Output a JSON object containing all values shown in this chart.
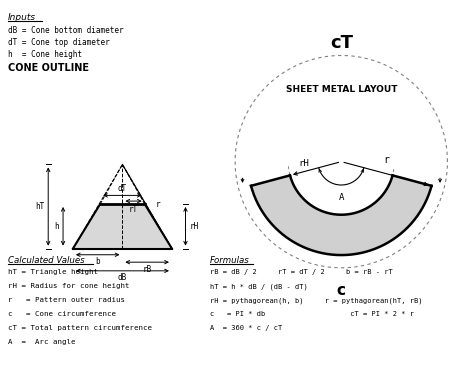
{
  "bg_color": "#ffffff",
  "title": "cT",
  "subtitle": "SHEET METAL LAYOUT",
  "inputs_title": "Inputs",
  "inputs": [
    "dB = Cone bottom diameter",
    "dT = Cone top diameter",
    "h  = Cone height"
  ],
  "cone_outline_title": "CONE OUTLINE",
  "calc_title": "Calculated Values",
  "calc_items": [
    "hT = Triangle height",
    "rH = Radius for cone height",
    "r   = Pattern outer radius",
    "c   = Cone circumference",
    "cT = Total pattern circumference",
    "A  =  Arc angle"
  ],
  "formulas_title": "Formulas",
  "formulas": [
    "rB = dB / 2     rT = dT / 2     b = rB - rT",
    "hT = h * dB / (dB - dT)",
    "rH = pythagorean(h, b)     r = pythagorean(hT, rB)",
    "c   = PI * db                    cT = PI * 2 * r",
    "A  = 360 * c / cT"
  ]
}
